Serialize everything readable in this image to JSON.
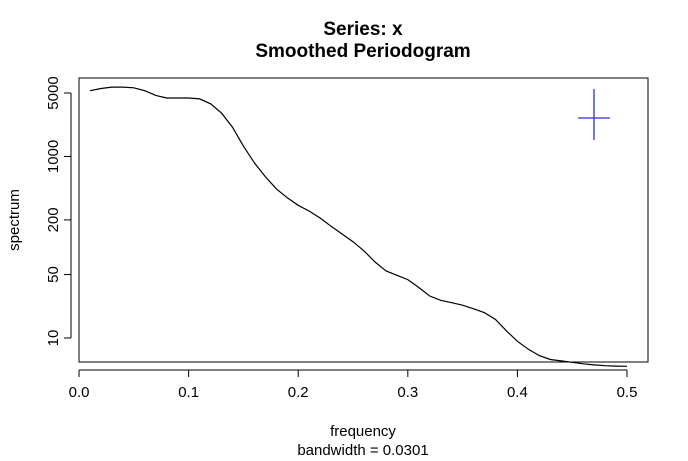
{
  "chart_data": {
    "type": "line",
    "title": "Series: x",
    "subtitle": "Smoothed Periodogram",
    "xlabel": "frequency",
    "xlabel_sub": "bandwidth = 0.0301",
    "ylabel": "spectrum",
    "y_scale": "log",
    "xlim": [
      0,
      0.5
    ],
    "ylim": [
      5,
      6500
    ],
    "x_ticks": [
      0.0,
      0.1,
      0.2,
      0.3,
      0.4,
      0.5
    ],
    "x_tick_labels": [
      "0.0",
      "0.1",
      "0.2",
      "0.3",
      "0.4",
      "0.5"
    ],
    "y_ticks": [
      10,
      50,
      200,
      1000,
      5000
    ],
    "y_tick_labels": [
      "10",
      "50",
      "200",
      "1000",
      "5000"
    ],
    "grid": false,
    "line_color": "#000000",
    "series": [
      {
        "x": [
          0.01,
          0.02,
          0.03,
          0.04,
          0.05,
          0.06,
          0.07,
          0.08,
          0.09,
          0.1,
          0.11,
          0.12,
          0.13,
          0.14,
          0.15,
          0.16,
          0.17,
          0.18,
          0.19,
          0.2,
          0.21,
          0.22,
          0.23,
          0.24,
          0.25,
          0.26,
          0.27,
          0.28,
          0.29,
          0.3,
          0.31,
          0.32,
          0.33,
          0.34,
          0.35,
          0.36,
          0.37,
          0.38,
          0.39,
          0.4,
          0.41,
          0.42,
          0.43,
          0.44,
          0.45,
          0.46,
          0.47,
          0.48,
          0.49,
          0.5
        ],
        "y": [
          5300,
          5600,
          5800,
          5800,
          5700,
          5300,
          4700,
          4400,
          4400,
          4400,
          4300,
          3800,
          3000,
          2100,
          1300,
          850,
          600,
          440,
          350,
          290,
          250,
          210,
          170,
          140,
          115,
          91,
          69,
          55,
          49,
          44,
          36,
          29,
          26,
          24.5,
          23,
          21,
          19,
          16,
          12,
          9.2,
          7.5,
          6.4,
          5.8,
          5.6,
          5.4,
          5.2,
          5.05,
          4.95,
          4.9,
          4.88
        ]
      }
    ],
    "ci_marker_color": "#3333cc"
  }
}
